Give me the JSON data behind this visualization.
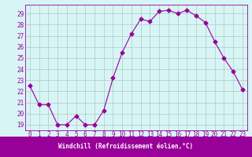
{
  "x": [
    0,
    1,
    2,
    3,
    4,
    5,
    6,
    7,
    8,
    9,
    10,
    11,
    12,
    13,
    14,
    15,
    16,
    17,
    18,
    19,
    20,
    21,
    22,
    23
  ],
  "y": [
    22.5,
    20.8,
    20.8,
    19.0,
    19.0,
    19.8,
    19.0,
    19.0,
    20.3,
    23.2,
    25.5,
    27.2,
    28.5,
    28.3,
    29.2,
    29.3,
    29.0,
    29.3,
    28.8,
    28.2,
    26.5,
    25.0,
    23.8,
    22.2
  ],
  "line_color": "#990099",
  "marker": "D",
  "marker_size": 2.5,
  "bg_color": "#d8f5f5",
  "grid_color": "#b0c8c8",
  "xlabel": "Windchill (Refroidissement éolien,°C)",
  "xlabel_color": "#ffffff",
  "xlabel_bg": "#990099",
  "ylabel_ticks": [
    19,
    20,
    21,
    22,
    23,
    24,
    25,
    26,
    27,
    28,
    29
  ],
  "ylim": [
    18.5,
    29.8
  ],
  "xlim": [
    -0.5,
    23.5
  ],
  "xtick_labels": [
    "0",
    "1",
    "2",
    "3",
    "4",
    "5",
    "6",
    "7",
    "8",
    "9",
    "10",
    "11",
    "12",
    "13",
    "14",
    "15",
    "16",
    "17",
    "18",
    "19",
    "20",
    "21",
    "22",
    "23"
  ],
  "tick_label_color": "#990099",
  "spine_color": "#990099",
  "label_fontsize": 5.5,
  "tick_fontsize": 5.5
}
